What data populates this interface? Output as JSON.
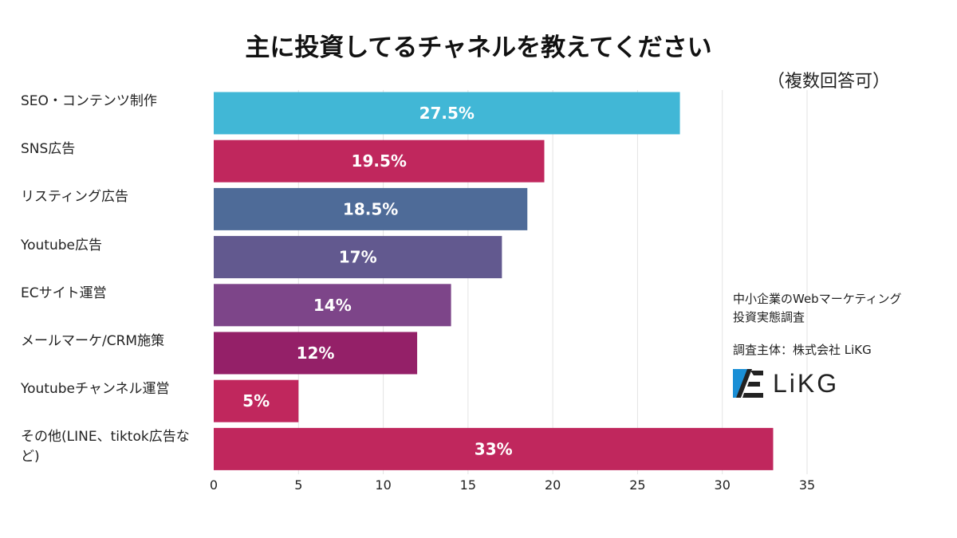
{
  "chart_data": {
    "type": "bar",
    "orientation": "horizontal",
    "title": "主に投資してるチャネルを教えてください",
    "subtitle": "（複数回答可）",
    "categories": [
      "SEO・コンテンツ制作",
      "SNS広告",
      "リスティング広告",
      "Youtube広告",
      "ECサイト運営",
      "メールマーケ/CRM施策",
      "Youtubeチャンネル運営",
      "その他(LINE、tiktok広告など)"
    ],
    "values": [
      27.5,
      19.5,
      18.5,
      17,
      14,
      12,
      5,
      33
    ],
    "data_labels": [
      "27.5%",
      "19.5%",
      "18.5%",
      "17%",
      "14%",
      "12%",
      "5%",
      "33%"
    ],
    "colors": [
      "#41b7d6",
      "#c0275d",
      "#4e6b98",
      "#62598f",
      "#7d4589",
      "#942068",
      "#c0275d",
      "#c0275d"
    ],
    "xlim": [
      0,
      35
    ],
    "xticks": [
      "0",
      "5",
      "10",
      "15",
      "20",
      "25",
      "30",
      "35"
    ],
    "grid": true,
    "legend": "none"
  },
  "credit": {
    "line1": "中小企業のWebマーケティング",
    "line2": "投資実態調査",
    "line3": "調査主体：株式会社 LiKG",
    "logo_text": "LiKG"
  }
}
